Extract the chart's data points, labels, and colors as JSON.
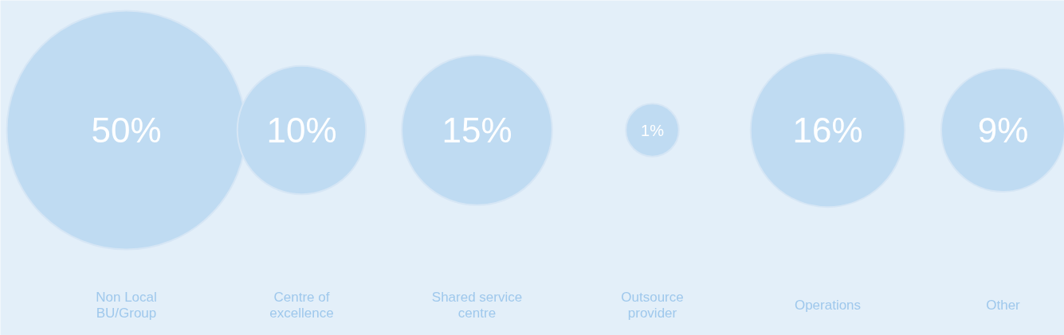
{
  "chart_data": {
    "type": "other",
    "categories": [
      "Non Local BU/Group",
      "Centre of excellence",
      "Shared service centre",
      "Outsource provider",
      "Operations",
      "Other"
    ],
    "values": [
      50,
      10,
      15,
      1,
      16,
      9
    ],
    "value_labels": [
      "50%",
      "10%",
      "15%",
      "1%",
      "16%",
      "9%"
    ],
    "color": "#bfdbf2"
  }
}
